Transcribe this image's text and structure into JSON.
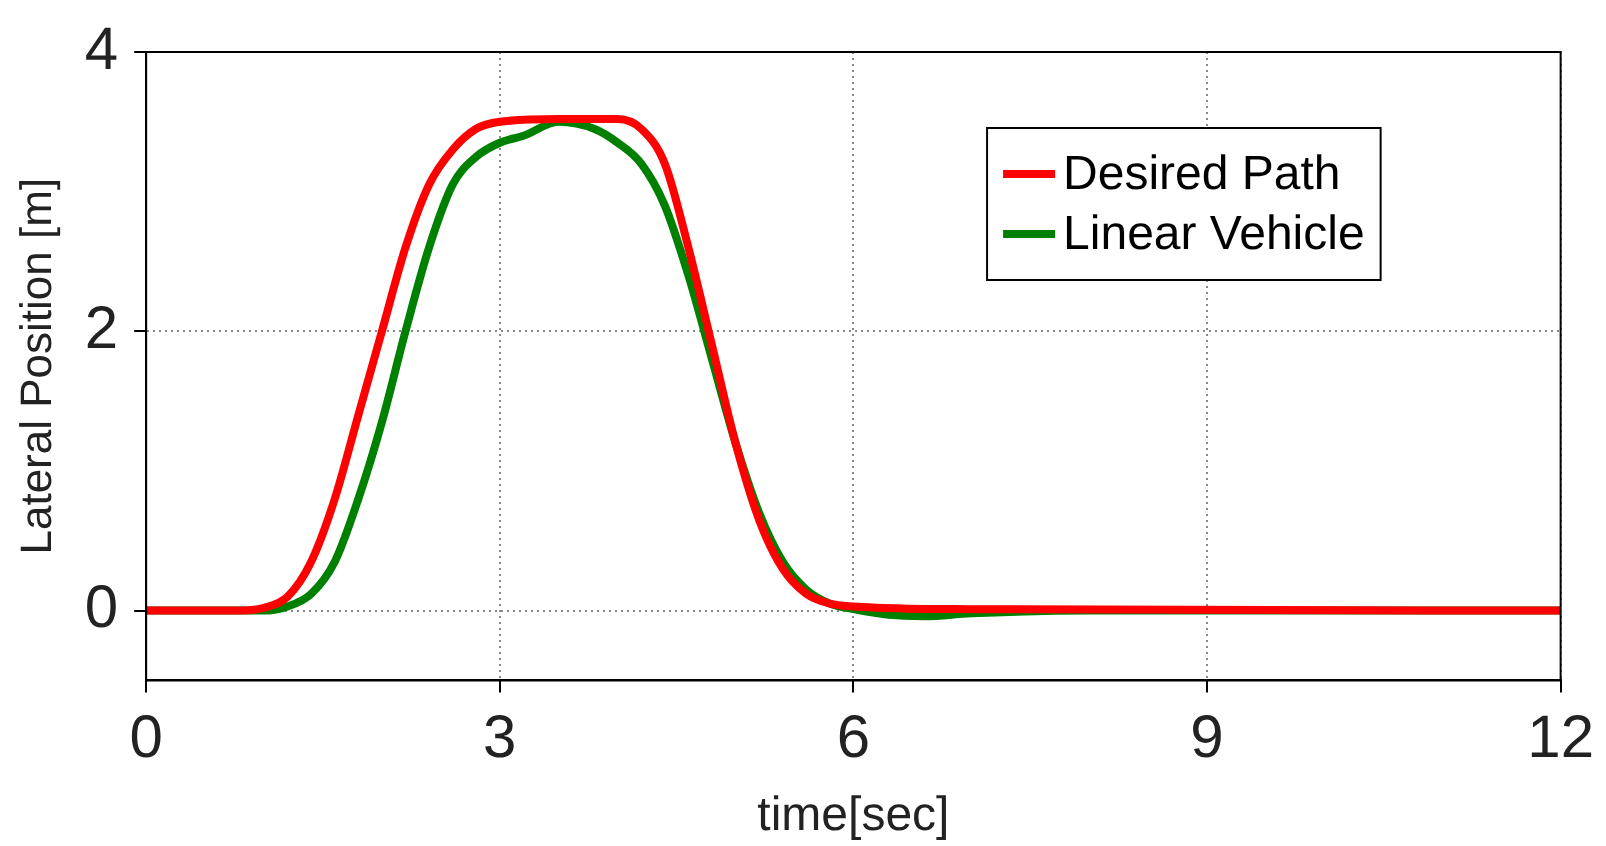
{
  "chart_data": {
    "type": "line",
    "xlabel": "time[sec]",
    "ylabel": "Lateral Position [m]",
    "xlim": [
      0,
      12
    ],
    "xticks": [
      0,
      3,
      6,
      9,
      12
    ],
    "ylim": [
      -0.5,
      4
    ],
    "yticks": [
      0,
      2,
      4
    ],
    "grid": true,
    "legend": "top right",
    "marker": "none",
    "line_style": "solid",
    "series": [
      {
        "name": "Desired Path",
        "color": "#ff0000",
        "x": [
          0,
          0.8,
          1.0,
          1.2,
          1.4,
          1.6,
          1.8,
          2.0,
          2.2,
          2.4,
          2.6,
          2.8,
          3.0,
          3.5,
          4.0,
          4.2,
          4.4,
          4.6,
          4.8,
          5.0,
          5.2,
          5.4,
          5.6,
          5.8,
          6.0,
          7.0,
          12
        ],
        "values": [
          0,
          0,
          0.02,
          0.1,
          0.35,
          0.8,
          1.4,
          2.0,
          2.6,
          3.05,
          3.3,
          3.45,
          3.5,
          3.52,
          3.52,
          3.45,
          3.2,
          2.6,
          1.9,
          1.2,
          0.65,
          0.3,
          0.12,
          0.05,
          0.03,
          0.01,
          0
        ]
      },
      {
        "name": "Linear Vehicle",
        "color": "#008000",
        "x": [
          0,
          1.0,
          1.2,
          1.4,
          1.6,
          1.8,
          2.0,
          2.2,
          2.4,
          2.6,
          2.8,
          3.0,
          3.2,
          3.5,
          3.8,
          4.0,
          4.2,
          4.4,
          4.6,
          4.8,
          5.0,
          5.2,
          5.4,
          5.6,
          5.8,
          6.0,
          6.3,
          6.6,
          7.0,
          8.0,
          12
        ],
        "values": [
          0,
          0,
          0.03,
          0.12,
          0.35,
          0.8,
          1.35,
          2.0,
          2.6,
          3.05,
          3.25,
          3.35,
          3.4,
          3.5,
          3.45,
          3.35,
          3.2,
          2.9,
          2.4,
          1.8,
          1.2,
          0.7,
          0.35,
          0.15,
          0.05,
          0.01,
          -0.03,
          -0.04,
          -0.02,
          0,
          0
        ]
      }
    ]
  }
}
